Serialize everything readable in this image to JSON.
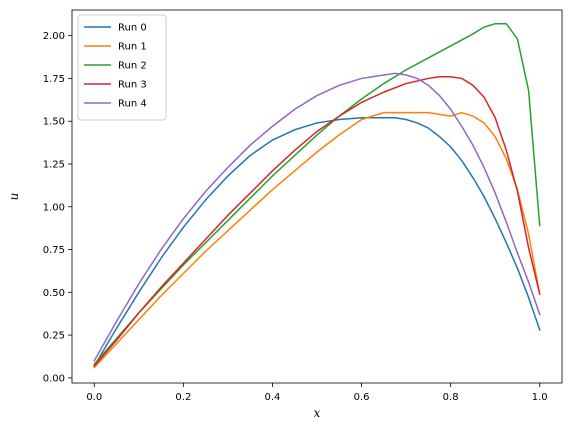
{
  "chart_data": {
    "type": "line",
    "title": "",
    "xlabel": "x",
    "ylabel": "u",
    "xlim": [
      -0.05,
      1.05
    ],
    "ylim": [
      -0.03,
      2.15
    ],
    "xticks": [
      0.0,
      0.2,
      0.4,
      0.6,
      0.8,
      1.0
    ],
    "xtick_labels": [
      "0.0",
      "0.2",
      "0.4",
      "0.6",
      "0.8",
      "1.0"
    ],
    "yticks": [
      0.0,
      0.25,
      0.5,
      0.75,
      1.0,
      1.25,
      1.5,
      1.75,
      2.0
    ],
    "ytick_labels": [
      "0.00",
      "0.25",
      "0.50",
      "0.75",
      "1.00",
      "1.25",
      "1.50",
      "1.75",
      "2.00"
    ],
    "grid": false,
    "legend": "upper-left",
    "series": [
      {
        "name": "Run 0",
        "color": "#1f77b4",
        "x": [
          0.0,
          0.05,
          0.1,
          0.15,
          0.2,
          0.25,
          0.3,
          0.35,
          0.4,
          0.45,
          0.5,
          0.55,
          0.6,
          0.625,
          0.65,
          0.675,
          0.7,
          0.725,
          0.75,
          0.775,
          0.8,
          0.825,
          0.85,
          0.875,
          0.9,
          0.925,
          0.95,
          0.975,
          1.0
        ],
        "y": [
          0.07,
          0.29,
          0.5,
          0.7,
          0.88,
          1.04,
          1.18,
          1.3,
          1.39,
          1.45,
          1.49,
          1.51,
          1.52,
          1.52,
          1.52,
          1.52,
          1.51,
          1.49,
          1.46,
          1.41,
          1.35,
          1.27,
          1.17,
          1.06,
          0.93,
          0.79,
          0.64,
          0.47,
          0.28
        ]
      },
      {
        "name": "Run 1",
        "color": "#ff7f0e",
        "x": [
          0.0,
          0.05,
          0.1,
          0.15,
          0.2,
          0.25,
          0.3,
          0.35,
          0.4,
          0.45,
          0.5,
          0.55,
          0.6,
          0.65,
          0.7,
          0.75,
          0.775,
          0.8,
          0.825,
          0.85,
          0.875,
          0.9,
          0.925,
          0.95,
          0.975,
          1.0
        ],
        "y": [
          0.06,
          0.2,
          0.34,
          0.48,
          0.61,
          0.74,
          0.86,
          0.98,
          1.1,
          1.21,
          1.32,
          1.42,
          1.51,
          1.55,
          1.55,
          1.55,
          1.54,
          1.53,
          1.55,
          1.53,
          1.49,
          1.41,
          1.28,
          1.1,
          0.84,
          0.49
        ]
      },
      {
        "name": "Run 2",
        "color": "#2ca02c",
        "x": [
          0.0,
          0.05,
          0.1,
          0.15,
          0.2,
          0.25,
          0.3,
          0.35,
          0.4,
          0.45,
          0.5,
          0.55,
          0.6,
          0.65,
          0.7,
          0.75,
          0.8,
          0.85,
          0.875,
          0.9,
          0.925,
          0.95,
          0.975,
          1.0
        ],
        "y": [
          0.08,
          0.23,
          0.38,
          0.52,
          0.66,
          0.79,
          0.92,
          1.05,
          1.18,
          1.3,
          1.42,
          1.53,
          1.63,
          1.72,
          1.8,
          1.87,
          1.94,
          2.01,
          2.05,
          2.07,
          2.07,
          1.98,
          1.68,
          0.89
        ]
      },
      {
        "name": "Run 3",
        "color": "#d62728",
        "x": [
          0.0,
          0.05,
          0.1,
          0.15,
          0.2,
          0.25,
          0.3,
          0.35,
          0.4,
          0.45,
          0.5,
          0.55,
          0.6,
          0.65,
          0.7,
          0.75,
          0.775,
          0.8,
          0.825,
          0.85,
          0.875,
          0.9,
          0.925,
          0.95,
          0.975,
          1.0
        ],
        "y": [
          0.07,
          0.22,
          0.38,
          0.53,
          0.67,
          0.81,
          0.95,
          1.08,
          1.21,
          1.33,
          1.44,
          1.53,
          1.61,
          1.67,
          1.72,
          1.75,
          1.76,
          1.76,
          1.75,
          1.71,
          1.64,
          1.52,
          1.33,
          1.09,
          0.76,
          0.49
        ]
      },
      {
        "name": "Run 4",
        "color": "#9467bd",
        "x": [
          0.0,
          0.05,
          0.1,
          0.15,
          0.2,
          0.25,
          0.3,
          0.35,
          0.4,
          0.45,
          0.5,
          0.55,
          0.6,
          0.625,
          0.65,
          0.675,
          0.7,
          0.725,
          0.75,
          0.775,
          0.8,
          0.825,
          0.85,
          0.875,
          0.9,
          0.925,
          0.95,
          0.975,
          1.0
        ],
        "y": [
          0.1,
          0.33,
          0.55,
          0.75,
          0.93,
          1.09,
          1.23,
          1.36,
          1.47,
          1.57,
          1.65,
          1.71,
          1.75,
          1.76,
          1.77,
          1.78,
          1.77,
          1.75,
          1.71,
          1.65,
          1.57,
          1.47,
          1.36,
          1.23,
          1.08,
          0.91,
          0.73,
          0.56,
          0.37
        ]
      }
    ]
  }
}
